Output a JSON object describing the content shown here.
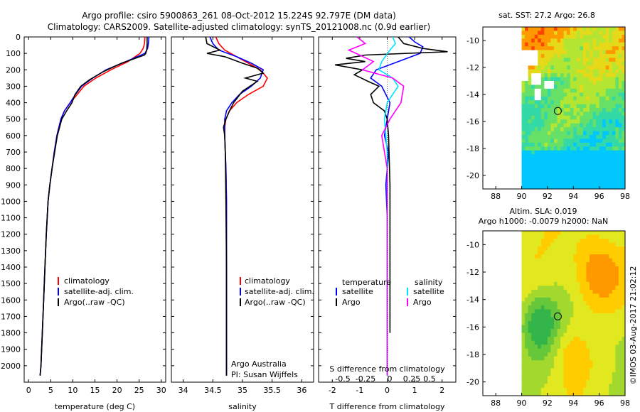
{
  "header": {
    "title_line1": "Argo profile: csiro 5900863_261 08-Oct-2012 15.224S 92.797E (DM data)",
    "title_line2": "Climatology: CARS2009. Satellite-adjusted climatology: synTS_20121008.nc (0.9d earlier)"
  },
  "chart_data": [
    {
      "id": "temperature",
      "type": "line",
      "xlabel": "temperature (deg C)",
      "ylabel": "",
      "xlim": [
        -1,
        31
      ],
      "ylim": [
        2100,
        0
      ],
      "xticks": [
        0,
        5,
        10,
        15,
        20,
        25,
        30
      ],
      "xtick_labels": [
        "0",
        "5",
        "10",
        "15",
        "20",
        "25",
        "30"
      ],
      "yticks": [
        0,
        100,
        200,
        300,
        400,
        500,
        600,
        700,
        800,
        900,
        1000,
        1100,
        1200,
        1300,
        1400,
        1500,
        1600,
        1700,
        1800,
        1900,
        2000
      ],
      "ytick_labels": [
        "0",
        "100",
        "200",
        "300",
        "400",
        "500",
        "600",
        "700",
        "800",
        "900",
        "1000",
        "1100",
        "1200",
        "1300",
        "1400",
        "1500",
        "1600",
        "1700",
        "1800",
        "1900",
        "2000"
      ],
      "legend": [
        "climatology",
        "satellite-adj. clim.",
        "Argo(..raw -QC)"
      ],
      "series": [
        {
          "name": "climatology",
          "color": "#ff0000",
          "x": [
            26.3,
            26.2,
            25.9,
            25.2,
            22.5,
            18.6,
            15.2,
            12.5,
            11.0,
            9.4,
            8.1,
            7.3,
            6.4,
            5.8,
            5.3,
            4.8,
            4.4,
            4.0,
            3.7,
            3.4,
            3.1,
            2.8,
            2.6
          ],
          "y": [
            0,
            40,
            70,
            100,
            150,
            200,
            250,
            300,
            350,
            400,
            450,
            500,
            600,
            700,
            800,
            900,
            1000,
            1200,
            1400,
            1600,
            1800,
            2000,
            2060
          ]
        },
        {
          "name": "satellite-adj. clim.",
          "color": "#0000ff",
          "x": [
            27.2,
            27.1,
            26.9,
            26.3,
            22.0,
            17.5,
            14.5,
            12.0,
            10.6,
            9.4,
            8.1,
            7.3,
            6.4,
            5.8,
            5.3,
            4.8,
            4.4,
            4.0,
            3.7,
            3.4,
            3.1,
            2.8,
            2.6
          ],
          "y": [
            0,
            40,
            70,
            100,
            150,
            200,
            250,
            300,
            350,
            400,
            450,
            500,
            600,
            700,
            800,
            900,
            1000,
            1200,
            1400,
            1600,
            1800,
            2000,
            2060
          ]
        },
        {
          "name": "Argo(..raw -QC)",
          "color": "#000000",
          "x": [
            26.8,
            26.8,
            26.7,
            26.5,
            26.2,
            21.0,
            17.0,
            13.8,
            11.8,
            10.5,
            9.8,
            8.6,
            7.5,
            6.5,
            5.9,
            5.3,
            4.8,
            4.4,
            4.0,
            3.7,
            3.4,
            3.1,
            2.8,
            2.6
          ],
          "y": [
            0,
            40,
            80,
            100,
            110,
            160,
            210,
            260,
            300,
            350,
            400,
            450,
            500,
            600,
            700,
            800,
            900,
            1000,
            1200,
            1400,
            1600,
            1800,
            2000,
            2060
          ]
        }
      ],
      "annotations": []
    },
    {
      "id": "salinity",
      "type": "line",
      "xlabel": "salinity",
      "ylabel": "",
      "xlim": [
        33.8,
        36.2
      ],
      "ylim": [
        2100,
        0
      ],
      "xticks": [
        34,
        34.5,
        35,
        35.5,
        36
      ],
      "xtick_labels": [
        "34",
        "34.5",
        "35",
        "35.5",
        "36"
      ],
      "legend": [
        "climatology",
        "satellite-adj. clim.",
        "Argo(..raw -QC)"
      ],
      "series": [
        {
          "name": "climatology",
          "color": "#ff0000",
          "x": [
            34.55,
            34.6,
            34.7,
            34.9,
            35.1,
            35.3,
            35.42,
            35.35,
            35.1,
            34.9,
            34.78,
            34.72,
            34.7,
            34.7,
            34.71,
            34.72,
            34.73,
            34.73,
            34.73,
            34.73
          ],
          "y": [
            0,
            40,
            80,
            120,
            160,
            200,
            250,
            300,
            350,
            400,
            450,
            500,
            550,
            600,
            700,
            800,
            1000,
            1400,
            1800,
            2060
          ]
        },
        {
          "name": "satellite-adj. clim.",
          "color": "#0000ff",
          "x": [
            34.45,
            34.5,
            34.6,
            34.9,
            35.15,
            35.35,
            35.3,
            35.15,
            34.95,
            34.82,
            34.73,
            34.7,
            34.7,
            34.7,
            34.71,
            34.72,
            34.73,
            34.73,
            34.73,
            34.73
          ],
          "y": [
            0,
            40,
            80,
            120,
            160,
            200,
            250,
            300,
            350,
            400,
            450,
            500,
            550,
            600,
            700,
            800,
            1000,
            1400,
            1800,
            2060
          ]
        },
        {
          "name": "Argo(..raw -QC)",
          "color": "#000000",
          "x": [
            34.38,
            34.4,
            34.62,
            34.4,
            34.7,
            35.0,
            35.25,
            35.35,
            35.05,
            35.25,
            35.0,
            34.85,
            34.78,
            34.72,
            34.68,
            34.7,
            34.71,
            34.72,
            34.73,
            34.73,
            34.73
          ],
          "y": [
            0,
            40,
            80,
            100,
            120,
            160,
            190,
            220,
            250,
            270,
            330,
            400,
            450,
            500,
            550,
            600,
            700,
            1000,
            1400,
            1800,
            2060
          ]
        }
      ],
      "annotations": [
        "Argo Australia",
        "PI: Susan Wijffels"
      ]
    },
    {
      "id": "difference",
      "type": "line",
      "xlabel_bottom": "T difference from climatology",
      "xlabel_top": "S difference from climatology",
      "xlim": [
        -2.5,
        2.5
      ],
      "ylim": [
        2100,
        0
      ],
      "xticks": [
        -2,
        -1,
        0,
        1,
        2
      ],
      "xtick_labels": [
        "-2",
        "-1",
        "0",
        "1",
        "2"
      ],
      "sticks": [
        -2,
        -1,
        0,
        1,
        2
      ],
      "stick_labels": [
        "-0.5",
        "-0.25",
        "0",
        "0.25",
        "0.5"
      ],
      "legend_left_title": "temperature",
      "legend_right_title": "salinity",
      "legend": [
        "satellite",
        "Argo",
        "satellite",
        "Argo"
      ],
      "series": [
        {
          "name": "temperature satellite",
          "color": "#0000ff",
          "x": [
            0.8,
            1.0,
            1.3,
            1.2,
            0.4,
            -0.4,
            -0.6,
            -0.2,
            0.1,
            0.0,
            -0.1,
            0.05,
            -0.05,
            0.0,
            0.0,
            0.0,
            0.0,
            0.0
          ],
          "y": [
            0,
            30,
            60,
            100,
            150,
            200,
            250,
            300,
            400,
            500,
            600,
            700,
            900,
            1100,
            1400,
            1700,
            2000,
            2060
          ]
        },
        {
          "name": "temperature Argo",
          "color": "#000000",
          "x": [
            0.4,
            0.6,
            1.3,
            2.2,
            -0.8,
            -1.5,
            -0.8,
            -1.9,
            -0.9,
            -1.2,
            -0.7,
            -0.3,
            -0.6,
            -0.5,
            -0.1,
            0.0,
            0.05,
            0.1,
            0.1,
            0.1
          ],
          "y": [
            0,
            40,
            70,
            90,
            110,
            130,
            150,
            170,
            200,
            230,
            270,
            300,
            350,
            400,
            450,
            500,
            600,
            900,
            1500,
            1800
          ]
        },
        {
          "name": "salinity satellite",
          "color": "#00e5ff",
          "x": [
            0.2,
            0.3,
            0.1,
            -0.2,
            -0.3,
            0.2,
            0.4,
            0.0,
            -0.1,
            0.0,
            0.0,
            0.0,
            0.0
          ],
          "y": [
            0,
            40,
            80,
            150,
            200,
            250,
            300,
            400,
            500,
            700,
            1100,
            1500,
            2060
          ]
        },
        {
          "name": "salinity Argo",
          "color": "#ff00ff",
          "x": [
            -1.1,
            -0.8,
            -1.4,
            -1.0,
            -0.5,
            -0.9,
            0.2,
            0.6,
            0.5,
            0.1,
            -0.2,
            0.0,
            0.0,
            0.0
          ],
          "y": [
            0,
            40,
            80,
            110,
            150,
            200,
            250,
            300,
            400,
            500,
            600,
            800,
            1200,
            2060
          ]
        }
      ],
      "annotations": []
    },
    {
      "id": "sst_map",
      "type": "heatmap",
      "title": "sat. SST: 27.2  Argo: 26.8",
      "xlim": [
        87,
        98
      ],
      "ylim": [
        -21,
        -9
      ],
      "xticks": [
        88,
        90,
        92,
        94,
        96,
        98
      ],
      "xtick_labels": [
        "88",
        "90",
        "92",
        "94",
        "96",
        "98"
      ],
      "yticks": [
        -10,
        -12,
        -14,
        -16,
        -18,
        -20
      ],
      "ytick_labels": [
        "-10",
        "-12",
        "-14",
        "-16",
        "-18",
        "-20"
      ],
      "data_x_range": [
        90,
        98
      ],
      "argo_position": [
        92.797,
        -15.224
      ],
      "palette": [
        "#00c8ff",
        "#33d9a6",
        "#66e066",
        "#b3e633",
        "#e6d91a",
        "#ff9900",
        "#ff4400"
      ]
    },
    {
      "id": "sla_map",
      "type": "heatmap",
      "title_line1": "Altim. SLA: 0.019",
      "title_line2": "Argo h1000: -0.0079 h2000: NaN",
      "xlim": [
        87,
        98
      ],
      "ylim": [
        -21,
        -9
      ],
      "xticks": [
        88,
        90,
        92,
        94,
        96,
        98
      ],
      "xtick_labels": [
        "88",
        "90",
        "92",
        "94",
        "96",
        "98"
      ],
      "yticks": [
        -10,
        -12,
        -14,
        -16,
        -18,
        -20
      ],
      "ytick_labels": [
        "-10",
        "-12",
        "-14",
        "-16",
        "-18",
        "-20"
      ],
      "data_x_range": [
        90,
        98
      ],
      "argo_position": [
        92.797,
        -15.224
      ],
      "palette": [
        "#33b54a",
        "#66c73a",
        "#a3d92f",
        "#e1e81f",
        "#ffcc00",
        "#ff9900"
      ]
    }
  ],
  "side_label": "©IMOS 03-Aug-2017 21:02:12"
}
